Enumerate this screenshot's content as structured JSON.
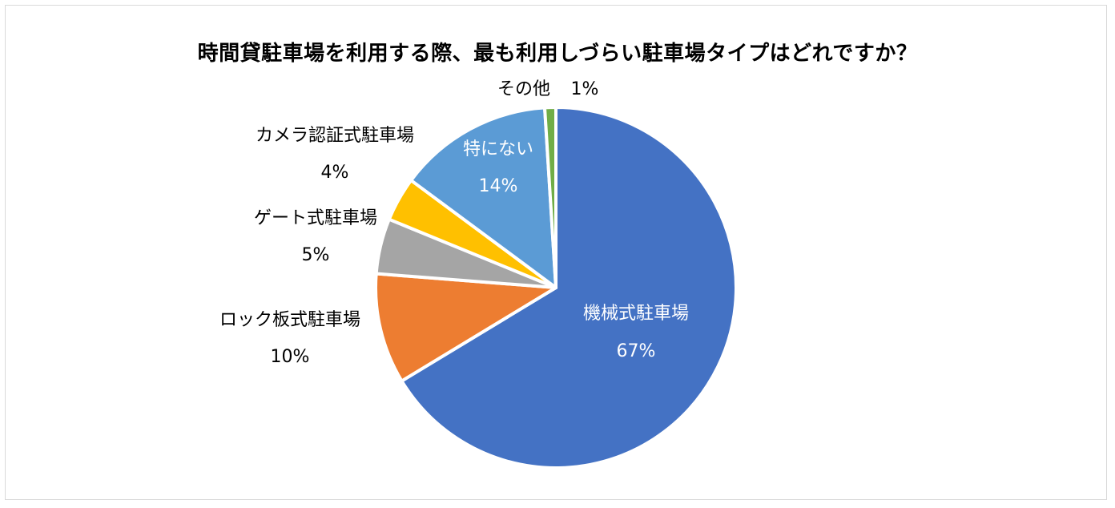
{
  "chart_data": {
    "type": "pie",
    "title": "時間貸駐車場を利用する際、最も利用しづらい駐車場タイプはどれですか？",
    "slices": [
      {
        "name": "機械式駐車場",
        "value": 67,
        "label": "67%",
        "color": "#4472c4",
        "label_color": "#ffffff"
      },
      {
        "name": "ロック板式駐車場",
        "value": 10,
        "label": "10%",
        "color": "#ed7d31",
        "label_color": "#000000"
      },
      {
        "name": "ゲート式駐車場",
        "value": 5,
        "label": "5%",
        "color": "#a5a5a5",
        "label_color": "#000000"
      },
      {
        "name": "カメラ認証式駐車場",
        "value": 4,
        "label": "4%",
        "color": "#ffc000",
        "label_color": "#000000"
      },
      {
        "name": "特にない",
        "value": 14,
        "label": "14%",
        "color": "#5b9bd5",
        "label_color": "#ffffff"
      },
      {
        "name": "その他",
        "value": 1,
        "label": "1%",
        "color": "#70ad47",
        "label_color": "#000000"
      }
    ],
    "start_angle_deg": 0,
    "direction": "clockwise",
    "legend": "none"
  }
}
